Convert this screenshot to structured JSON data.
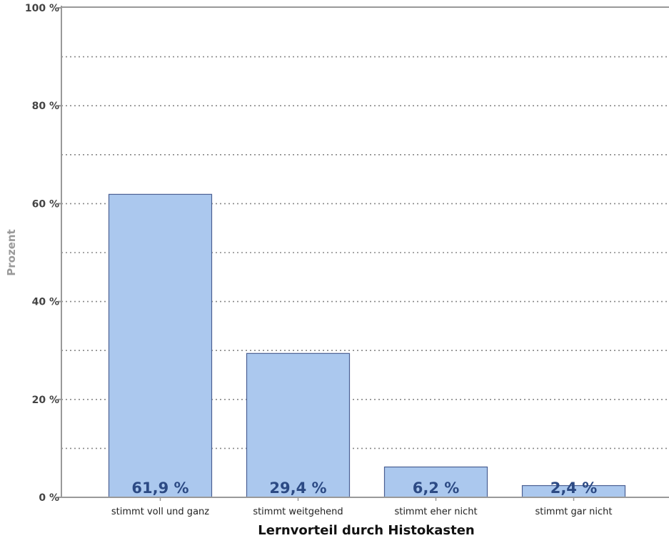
{
  "chart_data": {
    "type": "bar",
    "title": "",
    "xlabel": "Lernvorteil durch Histokasten",
    "ylabel": "Prozent",
    "ylim": [
      0,
      100
    ],
    "yticks": [
      0,
      20,
      40,
      60,
      80,
      100
    ],
    "ytick_labels": [
      "0 %",
      "20 %",
      "40 %",
      "60 %",
      "80 %",
      "100 %"
    ],
    "grid_lines": [
      10,
      20,
      30,
      40,
      50,
      60,
      70,
      80,
      90
    ],
    "grid": true,
    "legend": "none",
    "categories": [
      "stimmt voll und ganz",
      "stimmt weitgehend",
      "stimmt eher nicht",
      "stimmt gar nicht"
    ],
    "values": [
      61.9,
      29.4,
      6.2,
      2.4
    ],
    "value_labels": [
      "61,9 %",
      "29,4 %",
      "6,2 %",
      "2,4 %"
    ],
    "colors": {
      "bar_fill": "#abc8ee",
      "bar_stroke": "#4a5f93",
      "axis": "#999999",
      "grid": "#888888"
    }
  }
}
